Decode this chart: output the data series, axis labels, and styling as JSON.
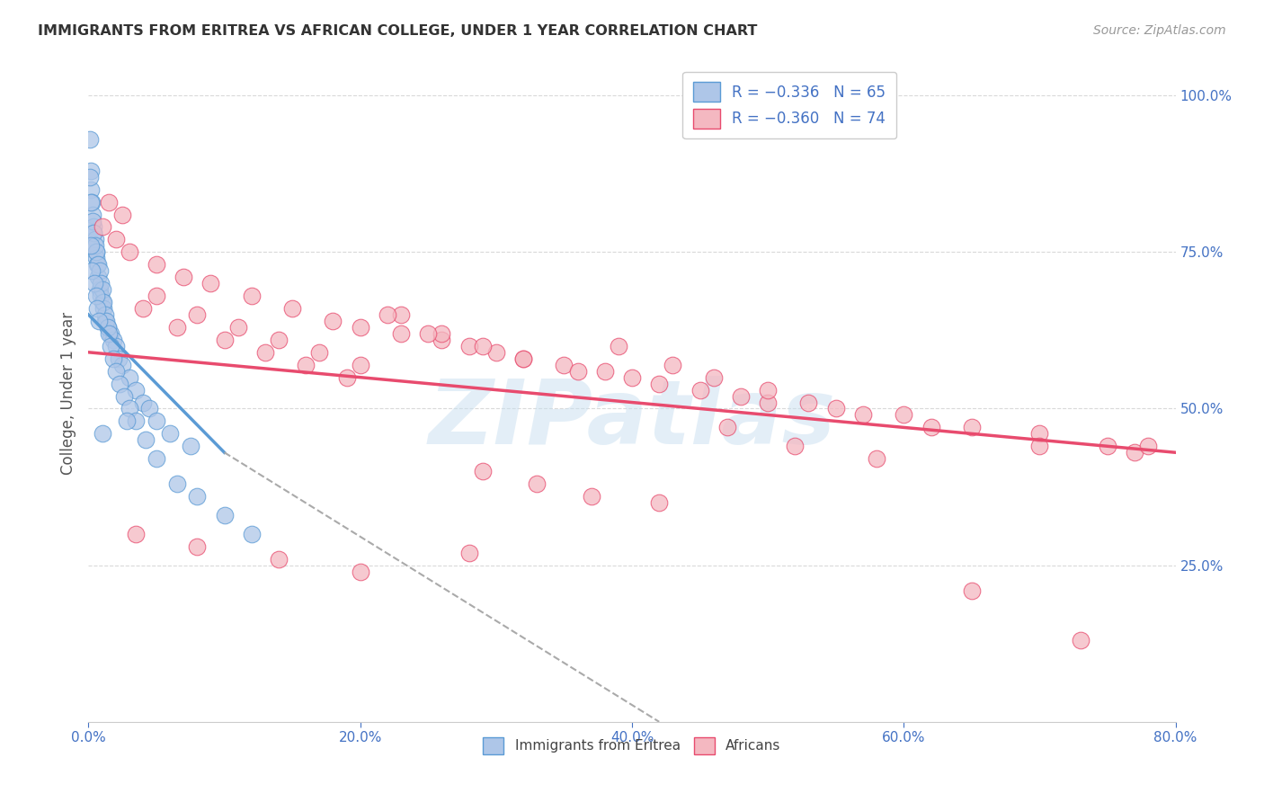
{
  "title": "IMMIGRANTS FROM ERITREA VS AFRICAN COLLEGE, UNDER 1 YEAR CORRELATION CHART",
  "source": "Source: ZipAtlas.com",
  "ylabel": "College, Under 1 year",
  "xlim": [
    0,
    80
  ],
  "ylim": [
    0,
    105
  ],
  "x_ticks": [
    0,
    20,
    40,
    60,
    80
  ],
  "y_ticks": [
    25,
    50,
    75,
    100
  ],
  "legend_labels_bottom": [
    "Immigrants from Eritrea",
    "Africans"
  ],
  "watermark": "ZIPatlas",
  "blue_line": {
    "x1": 0,
    "y1": 65,
    "x2": 10,
    "y2": 43
  },
  "pink_line": {
    "x1": 0,
    "y1": 59,
    "x2": 80,
    "y2": 43
  },
  "dash_line": {
    "x1": 10,
    "y1": 43,
    "x2": 42,
    "y2": 0
  },
  "background_color": "#ffffff",
  "title_color": "#333333",
  "axis_color": "#4472c4",
  "grid_color": "#d0d0d0",
  "blue_dot_color": "#5b9bd5",
  "blue_dot_fill": "#aec6e8",
  "pink_dot_color": "#e84b6e",
  "pink_dot_fill": "#f4b8c1",
  "blue_scatter_x": [
    0.1,
    0.15,
    0.2,
    0.25,
    0.3,
    0.35,
    0.4,
    0.5,
    0.55,
    0.6,
    0.65,
    0.7,
    0.8,
    0.9,
    1.0,
    1.1,
    1.2,
    1.4,
    1.6,
    1.8,
    2.0,
    2.2,
    2.5,
    3.0,
    3.5,
    4.0,
    4.5,
    5.0,
    6.0,
    7.5,
    0.1,
    0.2,
    0.3,
    0.4,
    0.5,
    0.6,
    0.7,
    0.8,
    0.9,
    1.0,
    1.1,
    1.2,
    1.3,
    1.4,
    1.5,
    1.6,
    1.8,
    2.0,
    2.3,
    2.6,
    3.0,
    3.5,
    4.2,
    5.0,
    6.5,
    8.0,
    10.0,
    12.0,
    1.0,
    2.8,
    0.15,
    0.25,
    0.45,
    0.55,
    0.65,
    0.75
  ],
  "blue_scatter_y": [
    93,
    88,
    85,
    83,
    81,
    79,
    78,
    77,
    75,
    74,
    73,
    71,
    69,
    68,
    67,
    66,
    64,
    63,
    62,
    61,
    60,
    58,
    57,
    55,
    53,
    51,
    50,
    48,
    46,
    44,
    87,
    83,
    80,
    78,
    76,
    75,
    73,
    72,
    70,
    69,
    67,
    65,
    64,
    63,
    62,
    60,
    58,
    56,
    54,
    52,
    50,
    48,
    45,
    42,
    38,
    36,
    33,
    30,
    46,
    48,
    76,
    72,
    70,
    68,
    66,
    64
  ],
  "pink_scatter_x": [
    1.0,
    2.0,
    3.0,
    5.0,
    7.0,
    9.0,
    12.0,
    15.0,
    18.0,
    20.0,
    23.0,
    26.0,
    28.0,
    30.0,
    32.0,
    35.0,
    38.0,
    40.0,
    42.0,
    45.0,
    48.0,
    50.0,
    55.0,
    60.0,
    65.0,
    70.0,
    75.0,
    2.5,
    5.0,
    8.0,
    11.0,
    14.0,
    17.0,
    20.0,
    23.0,
    26.0,
    29.0,
    32.0,
    36.0,
    39.0,
    43.0,
    46.0,
    50.0,
    53.0,
    57.0,
    62.0,
    70.0,
    77.0,
    1.5,
    4.0,
    6.5,
    10.0,
    13.0,
    16.0,
    19.0,
    22.0,
    25.0,
    29.0,
    33.0,
    37.0,
    42.0,
    47.0,
    52.0,
    58.0,
    65.0,
    73.0,
    78.0,
    3.5,
    8.0,
    14.0,
    20.0,
    28.0
  ],
  "pink_scatter_y": [
    79,
    77,
    75,
    73,
    71,
    70,
    68,
    66,
    64,
    63,
    62,
    61,
    60,
    59,
    58,
    57,
    56,
    55,
    54,
    53,
    52,
    51,
    50,
    49,
    47,
    46,
    44,
    81,
    68,
    65,
    63,
    61,
    59,
    57,
    65,
    62,
    60,
    58,
    56,
    60,
    57,
    55,
    53,
    51,
    49,
    47,
    44,
    43,
    83,
    66,
    63,
    61,
    59,
    57,
    55,
    65,
    62,
    40,
    38,
    36,
    35,
    47,
    44,
    42,
    21,
    13,
    44,
    30,
    28,
    26,
    24,
    27
  ]
}
